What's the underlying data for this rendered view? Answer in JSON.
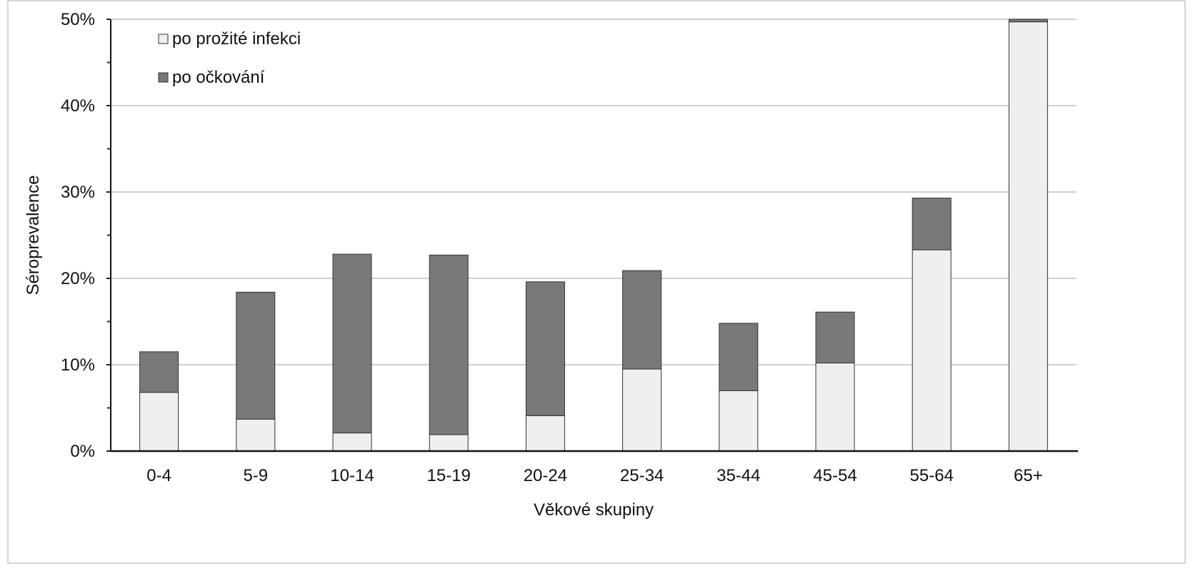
{
  "chart_data": {
    "type": "bar",
    "stacked": true,
    "title": "",
    "xlabel": "Věkové skupiny",
    "ylabel": "Séroprevalence",
    "ylim": [
      0,
      0.5
    ],
    "yticks": [
      0,
      0.1,
      0.2,
      0.3,
      0.4,
      0.5
    ],
    "ytick_labels": [
      "0%",
      "10%",
      "20%",
      "30%",
      "40%",
      "50%"
    ],
    "grid": true,
    "legend_position": "top-left",
    "categories": [
      "0-4",
      "5-9",
      "10-14",
      "15-19",
      "20-24",
      "25-34",
      "35-44",
      "45-54",
      "55-64",
      "65+"
    ],
    "series": [
      {
        "name": "po prožité infekci",
        "color": "#efefef",
        "values": [
          0.068,
          0.037,
          0.021,
          0.019,
          0.041,
          0.095,
          0.07,
          0.102,
          0.233,
          0.497
        ]
      },
      {
        "name": "po očkování",
        "color": "#77797a",
        "values": [
          0.047,
          0.147,
          0.207,
          0.208,
          0.155,
          0.114,
          0.078,
          0.059,
          0.06,
          0.003
        ]
      }
    ]
  }
}
